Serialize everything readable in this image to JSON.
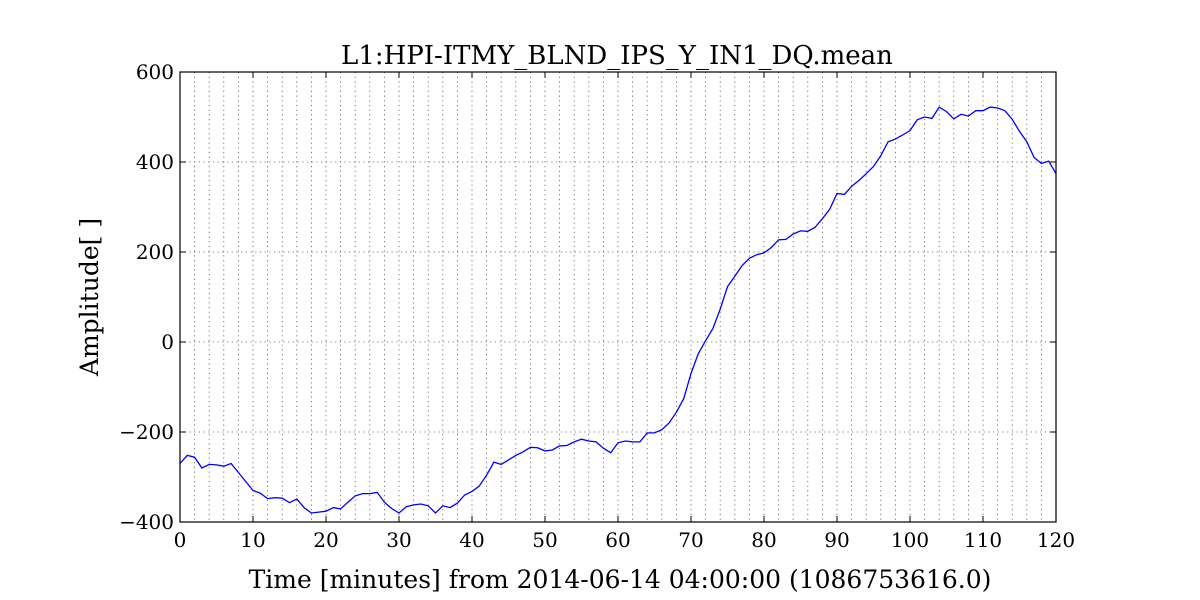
{
  "chart_data": {
    "type": "line",
    "title": "L1:HPI-ITMY_BLND_IPS_Y_IN1_DQ.mean",
    "xlabel": "Time [minutes] from 2014-06-14 04:00:00 (1086753616.0)",
    "ylabel": "Amplitude[ ]",
    "xlim": [
      0,
      120
    ],
    "ylim": [
      -400,
      600
    ],
    "x_ticks": [
      0,
      10,
      20,
      30,
      40,
      50,
      60,
      70,
      80,
      90,
      100,
      110,
      120
    ],
    "y_ticks": [
      -400,
      -200,
      0,
      200,
      400,
      600
    ],
    "x_tick_labels": [
      "0",
      "10",
      "20",
      "30",
      "40",
      "50",
      "60",
      "70",
      "80",
      "90",
      "100",
      "110",
      "120"
    ],
    "y_tick_labels": [
      "−400",
      "−200",
      "0",
      "200",
      "400",
      "600"
    ],
    "x_minor_grid_step": 2,
    "grid": true,
    "line_color": "#0000ff",
    "series": [
      {
        "x": [
          0,
          1,
          2,
          3,
          4,
          5,
          6,
          7,
          8,
          9,
          10,
          11,
          12,
          13,
          14,
          15,
          16,
          17,
          18,
          19,
          20,
          21,
          22,
          23,
          24,
          25,
          26,
          27,
          28,
          29,
          30,
          31,
          32,
          33,
          34,
          35,
          36,
          37,
          38,
          39,
          40,
          41,
          42,
          43,
          44,
          45,
          46,
          47,
          48,
          49,
          50,
          51,
          52,
          53,
          54,
          55,
          56,
          57,
          58,
          59,
          60,
          61,
          62,
          63,
          64,
          65,
          66,
          67,
          68,
          69,
          70,
          71,
          72,
          73,
          74,
          75,
          76,
          77,
          78,
          79,
          80,
          81,
          82,
          83,
          84,
          85,
          86,
          87,
          88,
          89,
          90,
          91,
          92,
          93,
          94,
          95,
          96,
          97,
          98,
          99,
          100,
          101,
          102,
          103,
          104,
          105,
          106,
          107,
          108,
          109,
          110,
          111,
          112,
          113,
          114,
          115,
          116,
          117,
          118,
          119,
          120
        ],
        "y": [
          -270,
          -252,
          -256,
          -280,
          -272,
          -273,
          -276,
          -270,
          -290,
          -310,
          -330,
          -336,
          -348,
          -346,
          -347,
          -357,
          -349,
          -368,
          -380,
          -378,
          -376,
          -368,
          -371,
          -356,
          -342,
          -337,
          -337,
          -334,
          -356,
          -370,
          -380,
          -366,
          -362,
          -360,
          -364,
          -380,
          -364,
          -368,
          -358,
          -340,
          -332,
          -320,
          -296,
          -267,
          -272,
          -262,
          -252,
          -244,
          -234,
          -235,
          -242,
          -240,
          -231,
          -230,
          -222,
          -216,
          -220,
          -222,
          -236,
          -246,
          -224,
          -220,
          -222,
          -222,
          -202,
          -202,
          -195,
          -180,
          -156,
          -126,
          -70,
          -26,
          3,
          30,
          73,
          123,
          146,
          170,
          186,
          194,
          198,
          210,
          227,
          228,
          240,
          247,
          246,
          255,
          274,
          295,
          330,
          328,
          346,
          359,
          374,
          390,
          414,
          445,
          451,
          460,
          470,
          494,
          500,
          497,
          522,
          512,
          496,
          506,
          502,
          514,
          514,
          522,
          520,
          514,
          495,
          468,
          445,
          410,
          397,
          402,
          374
        ]
      }
    ]
  }
}
